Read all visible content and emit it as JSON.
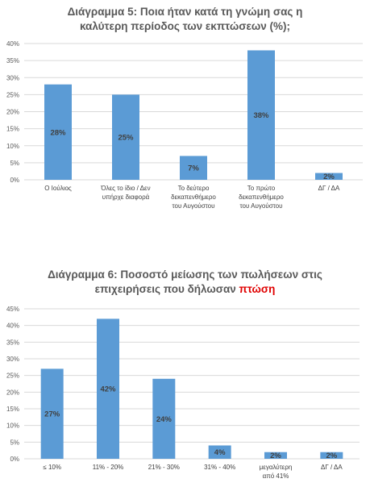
{
  "chart_data": [
    {
      "type": "bar",
      "title_lines": [
        "Διάγραμμα 5: Ποια ήταν κατά τη γνώμη σας η",
        "καλύτερη περίοδος των εκπτώσεων (%);"
      ],
      "title_highlight": "",
      "categories": [
        [
          "Ο Ιούλιος"
        ],
        [
          "Όλες το ίδιο / Δεν",
          "υπήρχε διαφορά"
        ],
        [
          "Το δεύτερο",
          "δεκαπενθήμερο",
          "του Αυγούστου"
        ],
        [
          "Το πρώτο",
          "δεκαπενθήμερο",
          "του Αυγούστου"
        ],
        [
          "ΔΓ / ΔΑ"
        ]
      ],
      "values": [
        28,
        25,
        7,
        38,
        2
      ],
      "data_labels": [
        "28%",
        "25%",
        "7%",
        "38%",
        "2%"
      ],
      "yticks": [
        "0%",
        "5%",
        "10%",
        "15%",
        "20%",
        "25%",
        "30%",
        "35%",
        "40%"
      ],
      "ylim": [
        0,
        40
      ],
      "grid": true,
      "bar_color": "#5b9bd5"
    },
    {
      "type": "bar",
      "title_lines": [
        "Διάγραμμα 6: Ποσοστό μείωσης των πωλήσεων στις",
        "επιχειρήσεις που δήλωσαν "
      ],
      "title_highlight": "πτώση",
      "categories": [
        [
          "≤ 10%"
        ],
        [
          "11% - 20%"
        ],
        [
          "21% - 30%"
        ],
        [
          "31% - 40%"
        ],
        [
          "μεγαλύτερη",
          "από 41%"
        ],
        [
          "ΔΓ / ΔΑ"
        ]
      ],
      "values": [
        27,
        42,
        24,
        4,
        2,
        2
      ],
      "data_labels": [
        "27%",
        "42%",
        "24%",
        "4%",
        "2%",
        "2%"
      ],
      "yticks": [
        "0%",
        "5%",
        "10%",
        "15%",
        "20%",
        "25%",
        "30%",
        "35%",
        "40%",
        "45%"
      ],
      "ylim": [
        0,
        45
      ],
      "grid": true,
      "bar_color": "#5b9bd5"
    }
  ]
}
